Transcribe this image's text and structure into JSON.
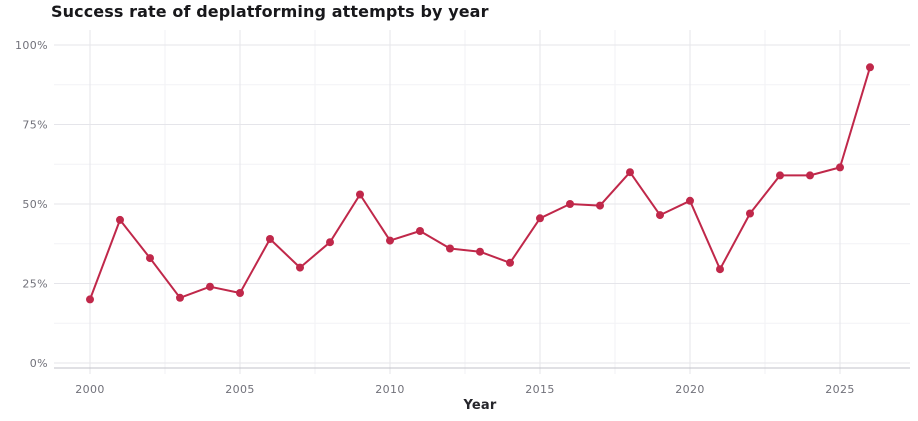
{
  "title": "Success rate of deplatforming attempts by year",
  "chart_data": {
    "type": "line",
    "title": "Success rate of deplatforming attempts by year",
    "xlabel": "Year",
    "ylabel": "",
    "x": [
      2000,
      2001,
      2002,
      2003,
      2004,
      2005,
      2006,
      2007,
      2008,
      2009,
      2010,
      2011,
      2012,
      2013,
      2014,
      2015,
      2016,
      2017,
      2018,
      2019,
      2020,
      2021,
      2022,
      2023,
      2024,
      2025,
      2026
    ],
    "values": [
      20,
      45,
      33,
      20.5,
      24,
      22,
      39,
      30,
      38,
      53,
      38.5,
      41.5,
      36,
      35,
      31.5,
      45.5,
      50,
      49.5,
      60,
      46.5,
      51,
      29.5,
      47,
      59,
      59,
      61.5,
      93
    ],
    "x_ticks": [
      2000,
      2005,
      2010,
      2015,
      2020,
      2025
    ],
    "x_minor_ticks": [
      2002.5,
      2007.5,
      2012.5,
      2017.5,
      2022.5
    ],
    "y_ticks": [
      0,
      25,
      50,
      75,
      100
    ],
    "y_tick_labels": [
      "0%",
      "25%",
      "50%",
      "75%",
      "100%"
    ],
    "y_minor_ticks": [
      12.5,
      37.5,
      62.5,
      87.5
    ],
    "ylim": [
      0,
      100
    ],
    "xlim": [
      1998.8,
      2027.3
    ],
    "grid": "major-and-minor",
    "legend": "none",
    "marker": "circle"
  },
  "colors": {
    "accent_line": "#c0284a",
    "title_text": "#18181b",
    "tick_text": "#71717a",
    "axis_title_text": "#26262b",
    "grid_major": "#e5e5ea",
    "grid_minor": "#f2f2f5",
    "axis_baseline": "#c2c2c8",
    "background": "#ffffff"
  }
}
